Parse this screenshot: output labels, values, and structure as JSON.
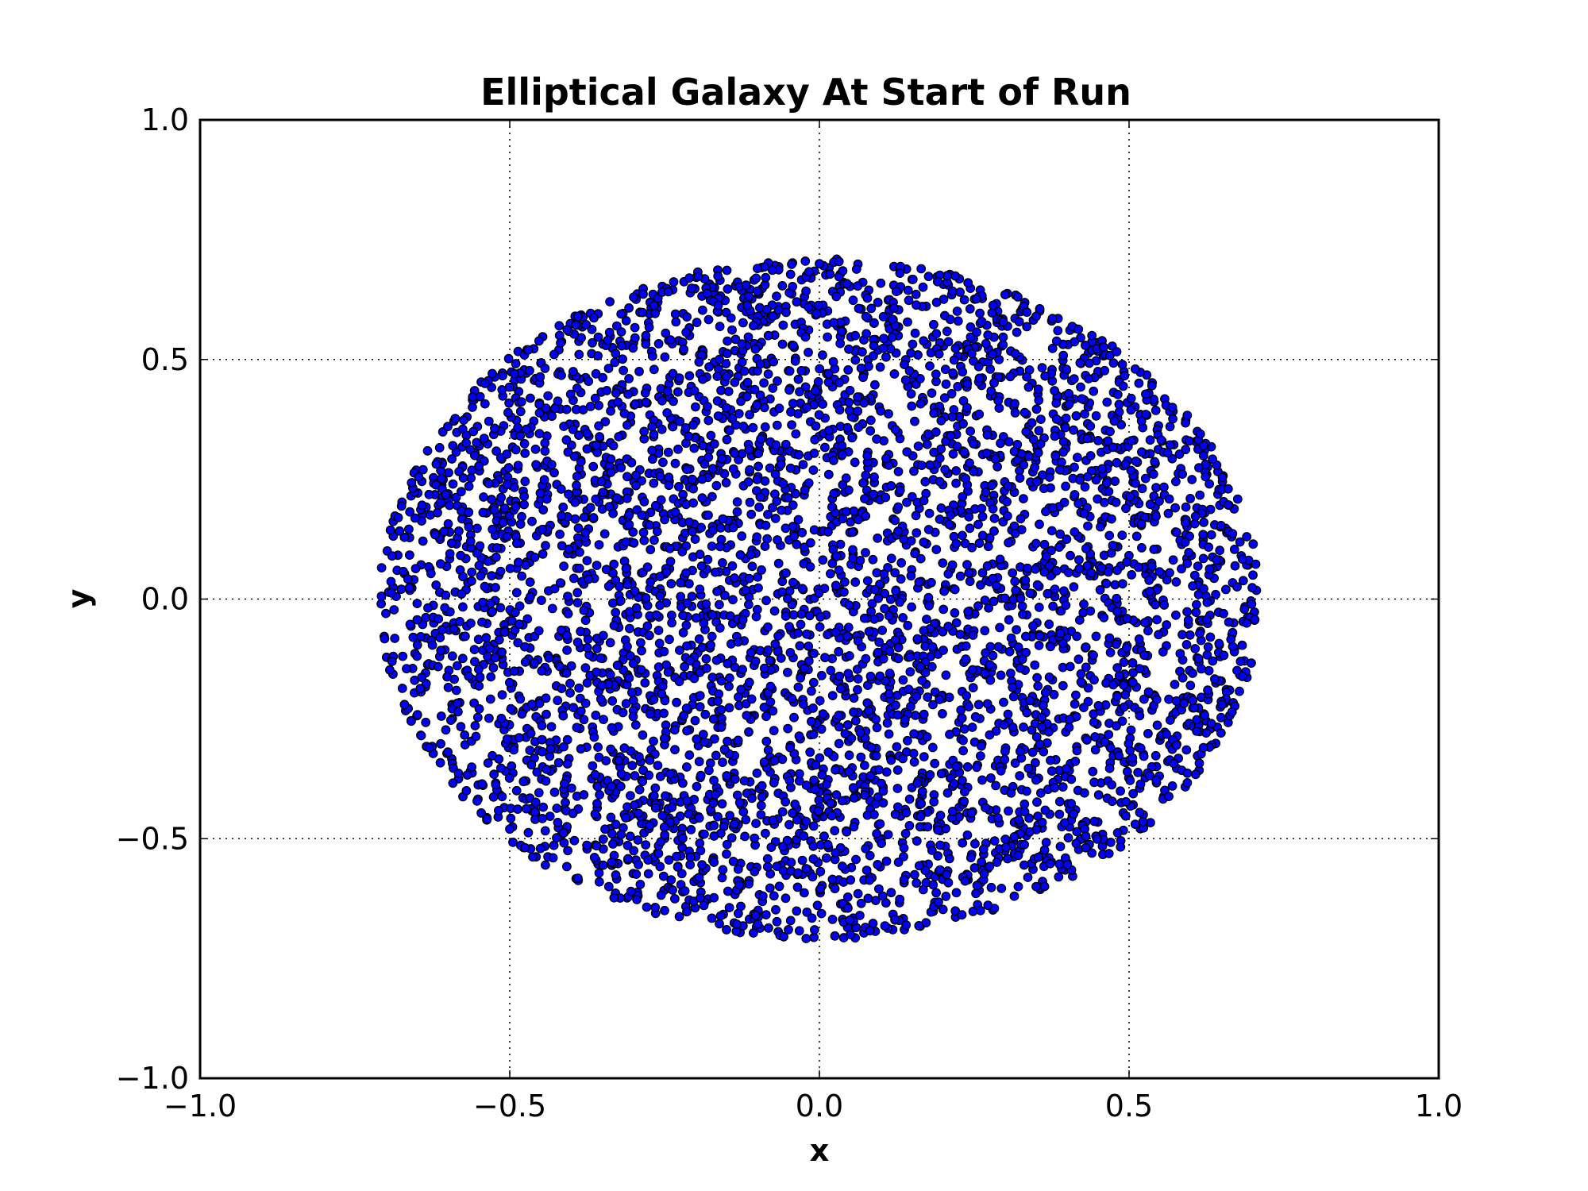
{
  "chart_data": {
    "type": "scatter",
    "title": "Elliptical Galaxy At Start of Run",
    "xlabel": "x",
    "ylabel": "y",
    "xlim": [
      -1.0,
      1.0
    ],
    "ylim": [
      -1.0,
      1.0
    ],
    "x_ticks": [
      -1.0,
      -0.5,
      0.0,
      0.5,
      1.0
    ],
    "y_ticks": [
      -1.0,
      -0.5,
      0.0,
      0.5,
      1.0
    ],
    "x_tick_labels": [
      "−1.0",
      "−0.5",
      "0.0",
      "0.5",
      "1.0"
    ],
    "y_tick_labels": [
      "−1.0",
      "−0.5",
      "0.0",
      "0.5",
      "1.0"
    ],
    "grid": true,
    "marker_color": "#0000ff",
    "marker_edge_color": "#000000",
    "series": [
      {
        "point_count_estimate": 5000,
        "distribution": "uniform disk",
        "center": [
          0.0,
          0.0
        ],
        "x_extent": [
          -0.71,
          0.71
        ],
        "y_extent": [
          -0.71,
          0.71
        ],
        "sample_points": [
          [
            0.0,
            0.7
          ],
          [
            0.13,
            0.68
          ],
          [
            0.24,
            0.66
          ],
          [
            0.35,
            0.59
          ],
          [
            0.44,
            0.55
          ],
          [
            0.51,
            0.48
          ],
          [
            0.57,
            0.4
          ],
          [
            0.62,
            0.32
          ],
          [
            0.66,
            0.23
          ],
          [
            0.69,
            0.13
          ],
          [
            0.7,
            0.05
          ],
          [
            0.69,
            -0.05
          ],
          [
            0.68,
            -0.13
          ],
          [
            0.65,
            -0.22
          ],
          [
            0.62,
            -0.31
          ],
          [
            0.57,
            -0.39
          ],
          [
            0.51,
            -0.47
          ],
          [
            0.44,
            -0.53
          ],
          [
            0.35,
            -0.6
          ],
          [
            0.26,
            -0.65
          ],
          [
            0.14,
            -0.68
          ],
          [
            0.05,
            -0.7
          ],
          [
            -0.05,
            -0.69
          ],
          [
            -0.15,
            -0.69
          ],
          [
            -0.25,
            -0.65
          ],
          [
            -0.34,
            -0.6
          ],
          [
            -0.43,
            -0.54
          ],
          [
            -0.5,
            -0.48
          ],
          [
            -0.57,
            -0.4
          ],
          [
            -0.63,
            -0.31
          ],
          [
            -0.67,
            -0.22
          ],
          [
            -0.69,
            -0.13
          ],
          [
            -0.7,
            -0.03
          ],
          [
            -0.69,
            0.09
          ],
          [
            -0.68,
            0.17
          ],
          [
            -0.64,
            0.27
          ],
          [
            -0.6,
            0.36
          ],
          [
            -0.54,
            0.45
          ],
          [
            -0.47,
            0.52
          ],
          [
            -0.39,
            0.59
          ],
          [
            -0.3,
            0.63
          ],
          [
            -0.21,
            0.67
          ],
          [
            -0.1,
            0.69
          ]
        ]
      }
    ]
  }
}
